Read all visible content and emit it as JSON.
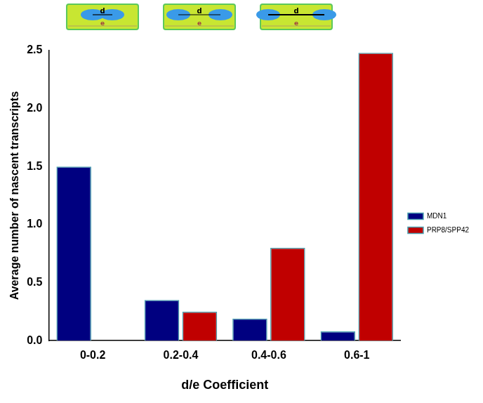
{
  "chart_data": {
    "type": "bar",
    "annotations": [
      "d",
      "e"
    ],
    "x_label": "d/e Coefficient",
    "y_label": "Average number of nascent transcripts",
    "categories": [
      "0-0.2",
      "0.2-0.4",
      "0.4-0.6",
      "0.6-1"
    ],
    "series": [
      {
        "name": "MDN1",
        "color": "#000080",
        "values": [
          1.5,
          0.35,
          0.19,
          0.08
        ]
      },
      {
        "name": "PRP8/SPP42",
        "color": "#c00000",
        "values": [
          0.0,
          0.25,
          0.8,
          2.48
        ]
      }
    ],
    "ylim": [
      0,
      2.5
    ],
    "yticks": [
      {
        "value": 0,
        "label": "0.0"
      },
      0.5,
      {
        "value": 1,
        "label": "1.0"
      },
      1.5,
      {
        "value": 2,
        "label": "2.0"
      },
      2.5
    ],
    "grid": false,
    "legend": "right"
  }
}
